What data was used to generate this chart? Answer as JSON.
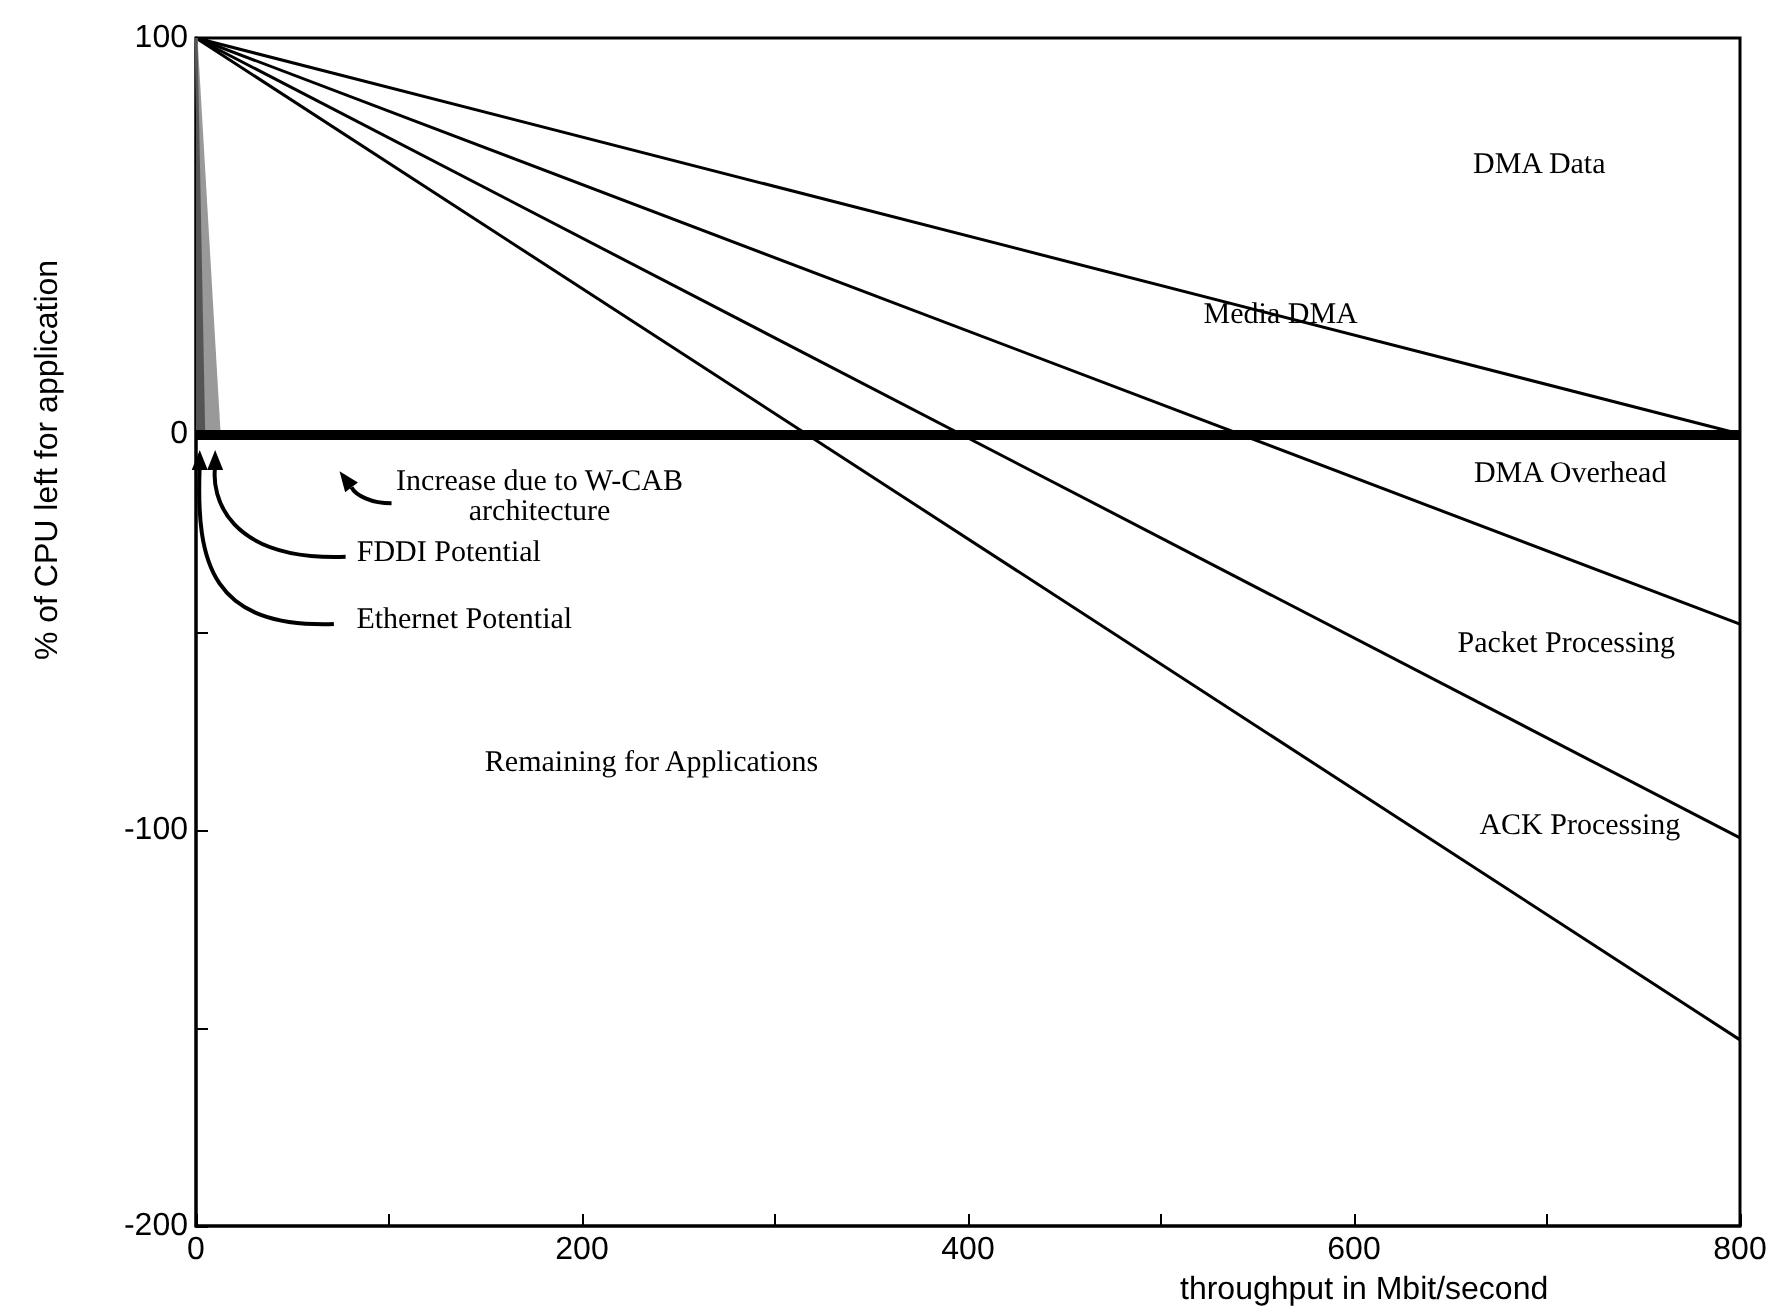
{
  "chart_data": {
    "type": "line",
    "xlabel": "throughput in Mbit/second",
    "ylabel": "% of CPU left for application",
    "xlim": [
      0,
      800
    ],
    "ylim": [
      -200,
      100
    ],
    "xticks": [
      0,
      {
        "value": 100,
        "label": null
      },
      200,
      {
        "value": 300,
        "label": null
      },
      400,
      {
        "value": 500,
        "label": null
      },
      600,
      {
        "value": 700,
        "label": null
      },
      800
    ],
    "yticks": [
      -200,
      {
        "value": -150,
        "label": null
      },
      -100,
      {
        "value": -50,
        "label": null
      },
      0,
      {
        "value": 50,
        "label": null
      },
      100
    ],
    "grid": false,
    "marker": "none",
    "line_style": "solid",
    "series": [
      {
        "color": "#000000",
        "x": [
          0,
          800
        ],
        "values": [
          100,
          0
        ]
      },
      {
        "color": "#000000",
        "x": [
          0,
          800
        ],
        "values": [
          100,
          -48
        ]
      },
      {
        "color": "#000000",
        "x": [
          0,
          800
        ],
        "values": [
          100,
          -102
        ]
      },
      {
        "color": "#000000",
        "x": [
          0,
          800
        ],
        "values": [
          100,
          -153
        ]
      },
      {
        "type": "area",
        "color": "#999999",
        "x": [
          0,
          12
        ],
        "values": [
          100,
          0
        ]
      },
      {
        "type": "area",
        "color": "#555555",
        "x": [
          0,
          4
        ],
        "values": [
          100,
          0
        ]
      }
    ],
    "ref_lines": [
      {
        "axis": "y",
        "value": 0,
        "color": "#000000"
      }
    ],
    "annotations": [
      "DMA Data",
      "Media DMA",
      "DMA Overhead",
      "Packet Processing",
      "ACK Processing",
      "Remaining for Applications",
      "Increase due to W-CAB\narchitecture",
      "FDDI Potential",
      "Ethernet Potential"
    ]
  }
}
